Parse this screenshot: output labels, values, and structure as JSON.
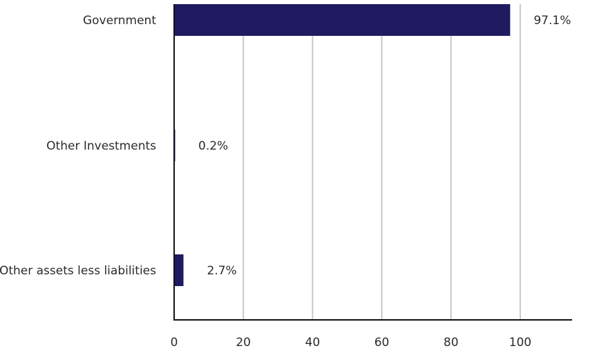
{
  "chart_data": {
    "type": "bar",
    "orientation": "horizontal",
    "categories": [
      "Government",
      "Other Investments",
      "Other assets less liabilities"
    ],
    "values": [
      97.1,
      0.2,
      2.7
    ],
    "value_labels": [
      "97.1%",
      "0.2%",
      "2.7%"
    ],
    "xlim": [
      0,
      115
    ],
    "xticks": [
      0,
      20,
      40,
      60,
      80,
      100
    ],
    "grid": "vertical",
    "bar_color": "#201a61",
    "title": "",
    "xlabel": "",
    "ylabel": ""
  }
}
